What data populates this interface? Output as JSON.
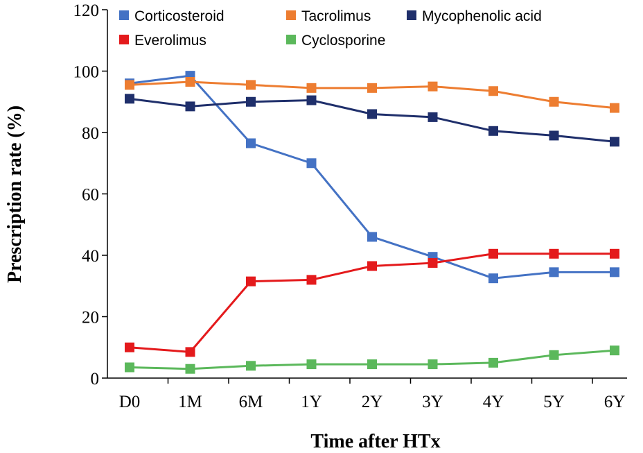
{
  "chart_data": {
    "type": "line",
    "title": "",
    "xlabel": "Time after HTx",
    "ylabel": "Prescription rate (%)",
    "ylim": [
      0,
      120
    ],
    "yticks": [
      0,
      20,
      40,
      60,
      80,
      100,
      120
    ],
    "categories": [
      "D0",
      "1M",
      "6M",
      "1Y",
      "2Y",
      "3Y",
      "4Y",
      "5Y",
      "6Y"
    ],
    "grid": false,
    "legend_position": "top",
    "series": [
      {
        "name": "Corticosteroid",
        "color": "#4472C4",
        "values": [
          96,
          98.5,
          76.5,
          70,
          46,
          39.5,
          32.5,
          34.5,
          34.5
        ]
      },
      {
        "name": "Tacrolimus",
        "color": "#ED7D31",
        "values": [
          95.5,
          96.5,
          95.5,
          94.5,
          94.5,
          95,
          93.5,
          90,
          88
        ]
      },
      {
        "name": "Mycophenolic acid",
        "color": "#1F2F6B",
        "values": [
          91,
          88.5,
          90,
          90.5,
          86,
          85,
          80.5,
          79,
          77
        ]
      },
      {
        "name": "Everolimus",
        "color": "#E41A1C",
        "values": [
          10,
          8.5,
          31.5,
          32,
          36.5,
          37.5,
          40.5,
          40.5,
          40.5
        ]
      },
      {
        "name": "Cyclosporine",
        "color": "#5BB85B",
        "values": [
          3.5,
          3,
          4,
          4.5,
          4.5,
          4.5,
          5,
          7.5,
          9
        ]
      }
    ]
  }
}
